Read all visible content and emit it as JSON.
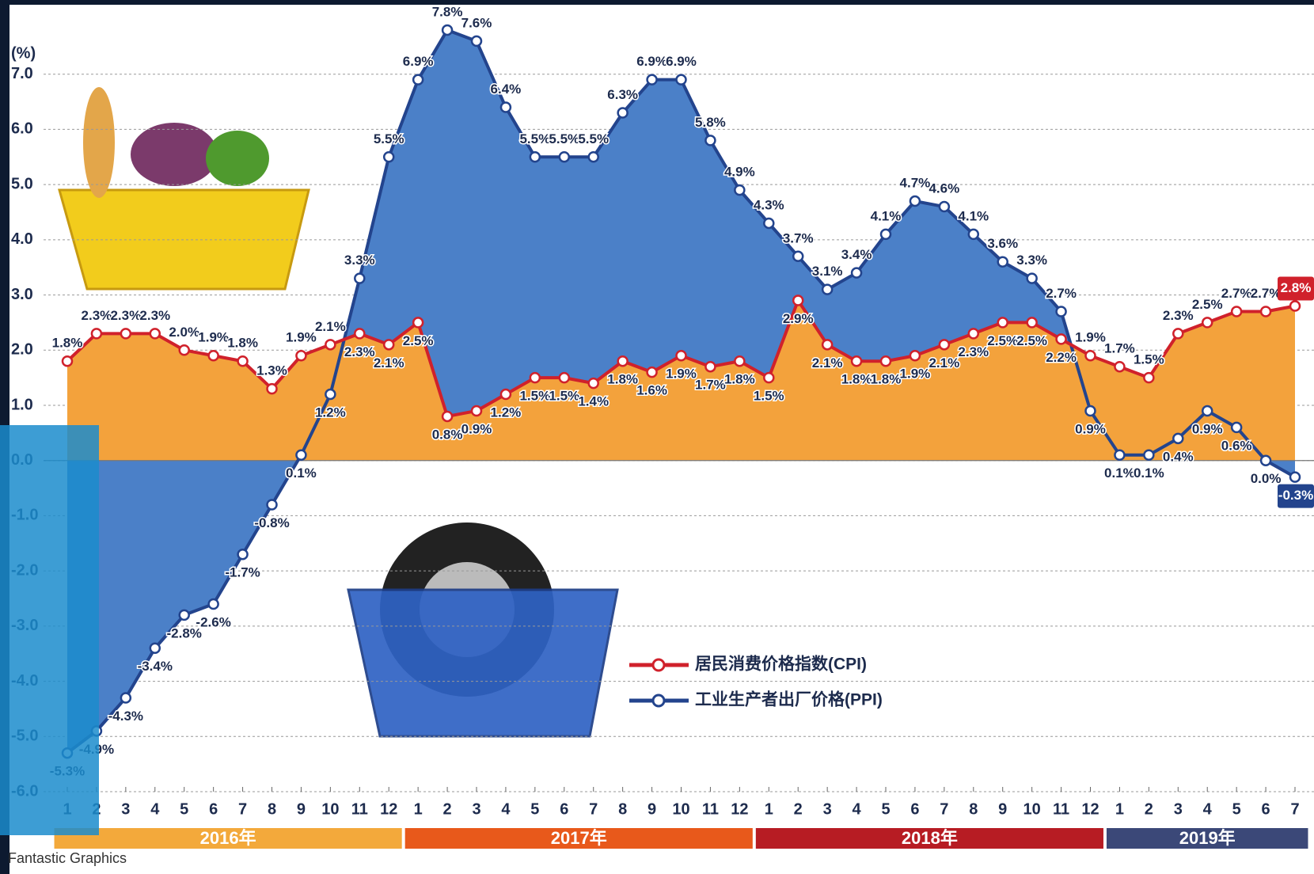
{
  "chart_data": {
    "type": "line",
    "y_unit": "(%)",
    "categories": [
      "1",
      "2",
      "3",
      "4",
      "5",
      "6",
      "7",
      "8",
      "9",
      "10",
      "11",
      "12",
      "1",
      "2",
      "3",
      "4",
      "5",
      "6",
      "7",
      "8",
      "9",
      "10",
      "11",
      "12",
      "1",
      "2",
      "3",
      "4",
      "5",
      "6",
      "7",
      "8",
      "9",
      "10",
      "11",
      "12",
      "1",
      "2",
      "3",
      "4",
      "5",
      "6",
      "7"
    ],
    "years": [
      "2016年",
      "2017年",
      "2018年",
      "2019年"
    ],
    "year_colors": [
      "#f3a93b",
      "#e8591b",
      "#b71c23",
      "#3b4878"
    ],
    "series": [
      {
        "name": "工业生产者出厂价格(PPI)",
        "color": "#23448d",
        "fill": "#4b80c8",
        "values": [
          -5.3,
          -4.9,
          -4.3,
          -3.4,
          -2.8,
          -2.6,
          -1.7,
          -0.8,
          0.1,
          1.2,
          3.3,
          5.5,
          6.9,
          7.8,
          7.6,
          6.4,
          5.5,
          5.5,
          5.5,
          6.3,
          6.9,
          6.9,
          5.8,
          4.9,
          4.3,
          3.7,
          3.1,
          3.4,
          4.1,
          4.7,
          4.6,
          4.1,
          3.6,
          3.3,
          2.7,
          0.9,
          0.1,
          0.1,
          0.4,
          0.9,
          0.6,
          0.0,
          -0.3
        ],
        "value_labels": [
          "-5.3%",
          "-4.9%",
          "-4.3%",
          "-3.4%",
          "-2.8%",
          "-2.6%",
          "-1.7%",
          "-0.8%",
          "0.1%",
          "1.2%",
          "3.3%",
          "5.5%",
          "6.9%",
          "7.8%",
          "7.6%",
          "6.4%",
          "5.5%",
          "5.5%",
          "5.5%",
          "6.3%",
          "6.9%",
          "6.9%",
          "5.8%",
          "4.9%",
          "4.3%",
          "3.7%",
          "3.1%",
          "3.4%",
          "4.1%",
          "4.7%",
          "4.6%",
          "4.1%",
          "3.6%",
          "3.3%",
          "2.7%",
          "0.9%",
          "0.1%",
          "0.1%",
          "0.4%",
          "0.9%",
          "0.6%",
          "0.0%",
          "-0.3%"
        ]
      },
      {
        "name": "居民消费价格指数(CPI)",
        "color": "#d0212b",
        "fill": "#f3a23c",
        "values": [
          1.8,
          2.3,
          2.3,
          2.3,
          2.0,
          1.9,
          1.8,
          1.3,
          1.9,
          2.1,
          2.3,
          2.1,
          2.5,
          0.8,
          0.9,
          1.2,
          1.5,
          1.5,
          1.4,
          1.8,
          1.6,
          1.9,
          1.7,
          1.8,
          1.5,
          2.9,
          2.1,
          1.8,
          1.8,
          1.9,
          2.1,
          2.3,
          2.5,
          2.5,
          2.2,
          1.9,
          1.7,
          1.5,
          2.3,
          2.5,
          2.7,
          2.7,
          2.8
        ],
        "value_labels": [
          "1.8%",
          "2.3%",
          "2.3%",
          "2.3%",
          "2.0%",
          "1.9%",
          "1.8%",
          "1.3%",
          "1.9%",
          "2.1%",
          "2.3%",
          "2.1%",
          "2.5%",
          "0.8%",
          "0.9%",
          "1.2%",
          "1.5%",
          "1.5%",
          "1.4%",
          "1.8%",
          "1.6%",
          "1.9%",
          "1.7%",
          "1.8%",
          "1.5%",
          "2.9%",
          "2.1%",
          "1.8%",
          "1.8%",
          "1.9%",
          "2.1%",
          "2.3%",
          "2.5%",
          "2.5%",
          "2.2%",
          "1.9%",
          "1.7%",
          "1.5%",
          "2.3%",
          "2.5%",
          "2.7%",
          "2.7%",
          "2.8%"
        ]
      }
    ],
    "ylim": [
      -6,
      8
    ],
    "yticks": [
      {
        "value": -6,
        "label": "-6.0"
      },
      {
        "value": -5,
        "label": "-5.0"
      },
      {
        "value": -4,
        "label": "-4.0"
      },
      {
        "value": -3,
        "label": "-3.0"
      },
      {
        "value": -2,
        "label": "-2.0"
      },
      {
        "value": -1,
        "label": "-1.0"
      },
      {
        "value": 0,
        "label": "0.0"
      },
      {
        "value": 1,
        "label": "1.0"
      },
      {
        "value": 2,
        "label": "2.0"
      },
      {
        "value": 3,
        "label": "3.0"
      },
      {
        "value": 4,
        "label": "4.0"
      },
      {
        "value": 5,
        "label": "5.0"
      },
      {
        "value": 6,
        "label": "6.0"
      },
      {
        "value": 7,
        "label": "7.0"
      }
    ],
    "grid": true,
    "source": "Fantastic Graphics"
  }
}
